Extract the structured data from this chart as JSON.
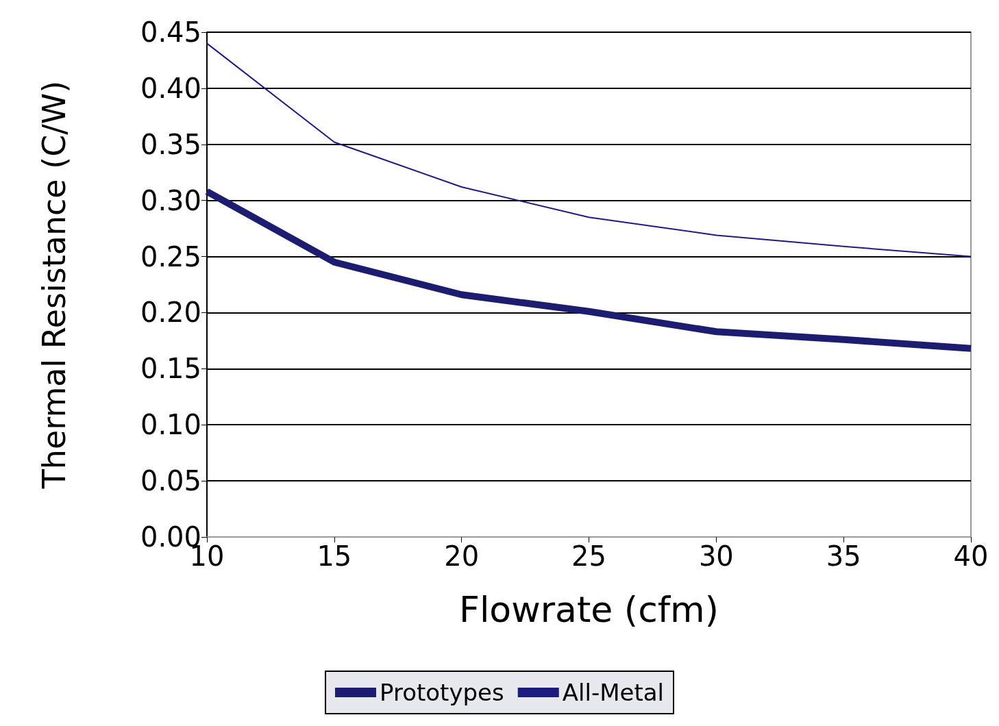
{
  "chart_data": {
    "type": "line",
    "xlabel": "Flowrate (cfm)",
    "ylabel": "Thermal Resistance (C/W)",
    "x": [
      10,
      15,
      20,
      25,
      30,
      35,
      40
    ],
    "series": [
      {
        "name": "Prototypes",
        "color": "#1c1c70",
        "values": [
          0.308,
          0.245,
          0.216,
          0.201,
          0.183,
          0.176,
          0.168
        ]
      },
      {
        "name": "All-Metal",
        "color": "#1c1c80",
        "values": [
          0.44,
          0.352,
          0.312,
          0.285,
          0.269,
          0.259,
          0.25
        ]
      }
    ],
    "xlim": [
      10,
      40
    ],
    "xticks": [
      10,
      15,
      20,
      25,
      30,
      35,
      40
    ],
    "ylim": [
      0,
      0.45
    ],
    "yticks": [
      {
        "value": 0,
        "label": "0.00"
      },
      {
        "value": 0.05,
        "label": "0.05"
      },
      {
        "value": 0.1,
        "label": "0.10"
      },
      {
        "value": 0.15,
        "label": "0.15"
      },
      {
        "value": 0.2,
        "label": "0.20"
      },
      {
        "value": 0.25,
        "label": "0.25"
      },
      {
        "value": 0.3,
        "label": "0.30"
      },
      {
        "value": 0.35,
        "label": "0.35"
      },
      {
        "value": 0.4,
        "label": "0.40"
      },
      {
        "value": 0.45,
        "label": "0.45"
      }
    ],
    "grid": "y",
    "legend": "bottom",
    "marker": "none",
    "line_style": "solid"
  }
}
